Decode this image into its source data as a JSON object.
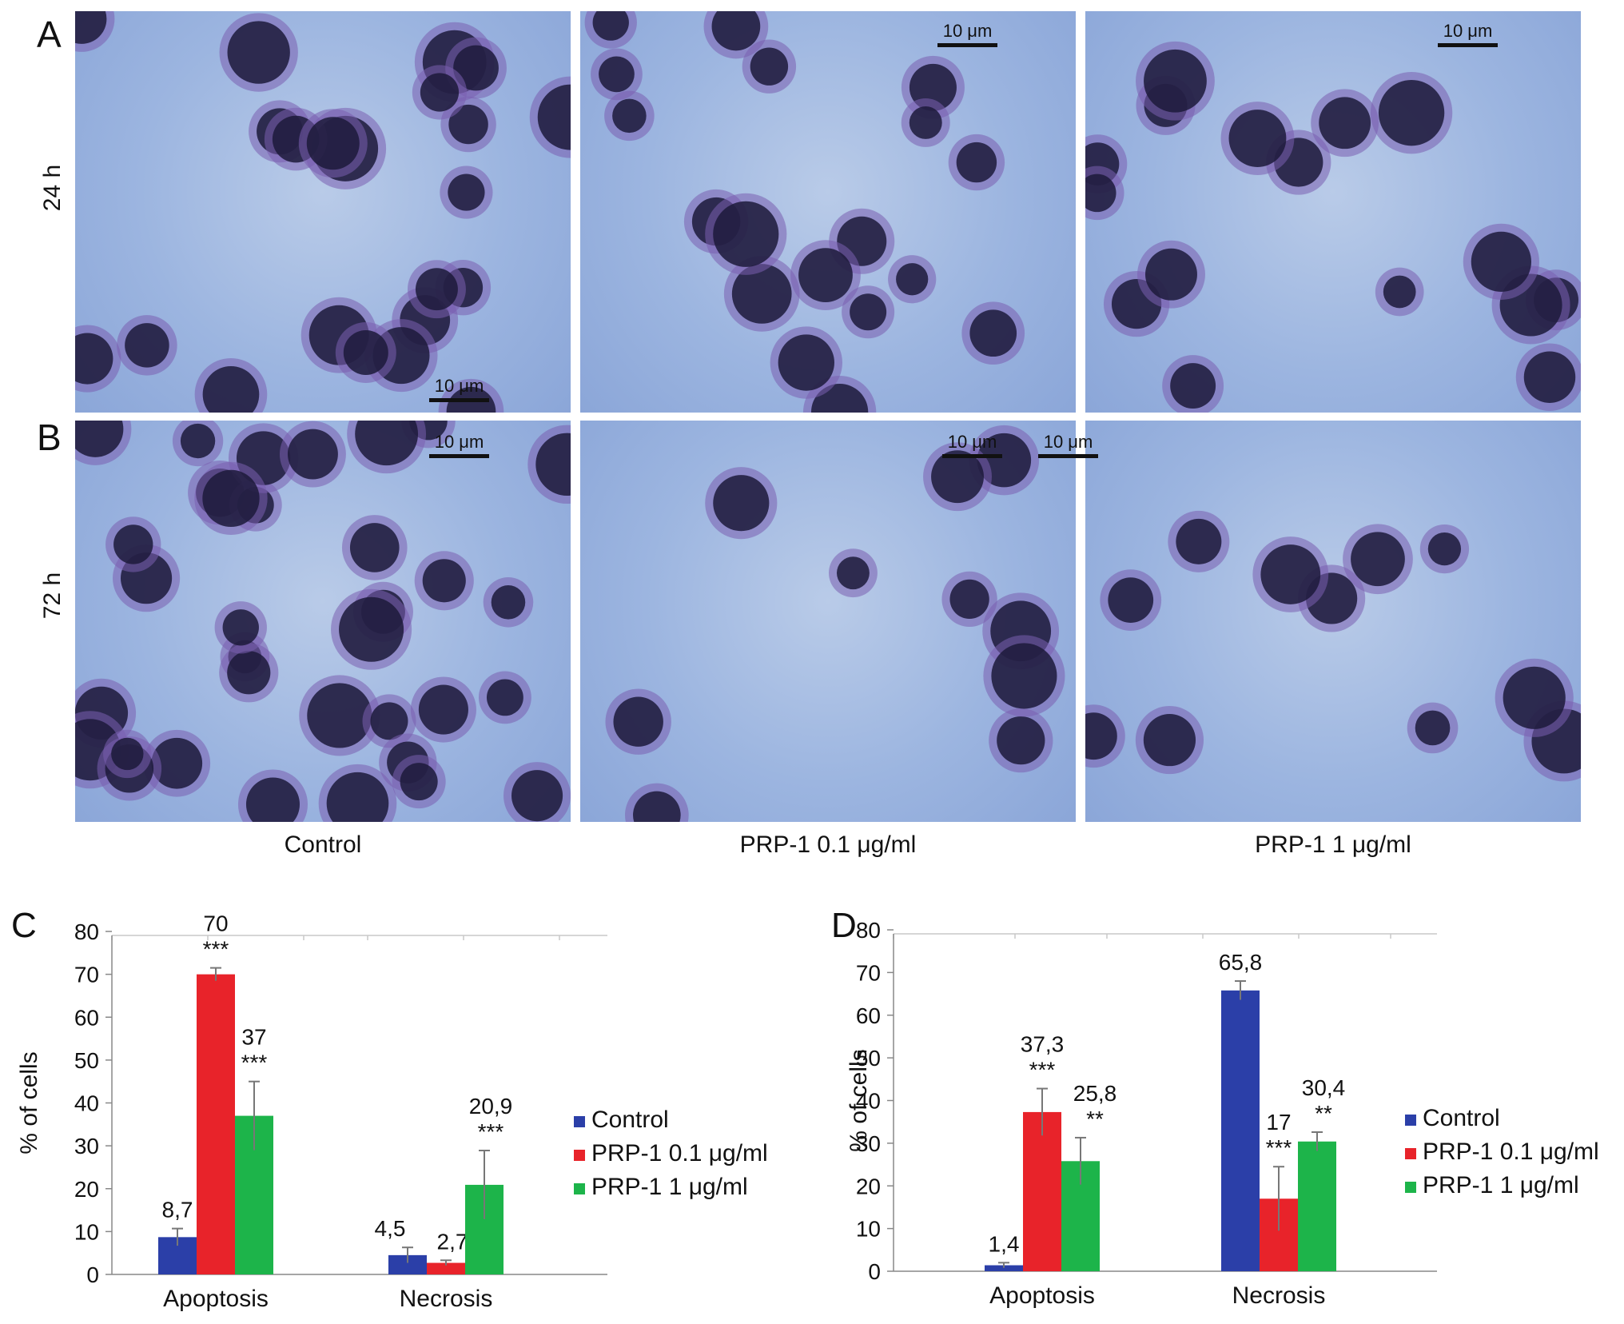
{
  "panels": {
    "A": {
      "letter": "A",
      "row_label": "24 h"
    },
    "B": {
      "letter": "B",
      "row_label": "72 h"
    }
  },
  "columns": [
    "Control",
    "PRP-1 0.1 μg/ml",
    "PRP-1 1 μg/ml"
  ],
  "scale_bar": "10 μm",
  "charts": [
    {
      "letter": "C",
      "chart_data": {
        "type": "bar",
        "categories": [
          "Apoptosis",
          "Necrosis"
        ],
        "ylabel": "% of cells",
        "ylim": [
          0,
          80
        ],
        "yticks": [
          0,
          10,
          20,
          30,
          40,
          50,
          60,
          70,
          80
        ],
        "legend_position": "right",
        "series": [
          {
            "name": "Control",
            "color": "#2b3fa8",
            "values": [
              8.7,
              4.5
            ],
            "errors": [
              2.0,
              1.8
            ],
            "labels": [
              "8,7",
              "4,5"
            ],
            "sig": [
              "",
              ""
            ]
          },
          {
            "name": "PRP-1 0.1 μg/ml",
            "color": "#e8232a",
            "values": [
              70,
              2.7
            ],
            "errors": [
              1.5,
              0.6
            ],
            "labels": [
              "70",
              "2,7"
            ],
            "sig": [
              "***",
              ""
            ]
          },
          {
            "name": "PRP-1 1 μg/ml",
            "color": "#1db44a",
            "values": [
              37,
              20.9
            ],
            "errors": [
              8.0,
              8.0
            ],
            "labels": [
              "37",
              "20,9"
            ],
            "sig": [
              "***",
              "***"
            ]
          }
        ]
      }
    },
    {
      "letter": "D",
      "chart_data": {
        "type": "bar",
        "categories": [
          "Apoptosis",
          "Necrosis"
        ],
        "ylabel": "% of cells",
        "ylim": [
          0,
          80
        ],
        "yticks": [
          0,
          10,
          20,
          30,
          40,
          50,
          60,
          70,
          80
        ],
        "legend_position": "right",
        "series": [
          {
            "name": "Control",
            "color": "#2b3fa8",
            "values": [
              1.4,
              65.8
            ],
            "errors": [
              0.6,
              2.2
            ],
            "labels": [
              "1,4",
              "65,8"
            ],
            "sig": [
              "",
              ""
            ]
          },
          {
            "name": "PRP-1 0.1 μg/ml",
            "color": "#e8232a",
            "values": [
              37.3,
              17
            ],
            "errors": [
              5.5,
              7.5
            ],
            "labels": [
              "37,3",
              "17"
            ],
            "sig": [
              "***",
              "***"
            ]
          },
          {
            "name": "PRP-1 1 μg/ml",
            "color": "#1db44a",
            "values": [
              25.8,
              30.4
            ],
            "errors": [
              5.5,
              2.2
            ],
            "labels": [
              "25,8",
              "30,4"
            ],
            "sig": [
              "**",
              "**"
            ]
          }
        ]
      }
    }
  ]
}
